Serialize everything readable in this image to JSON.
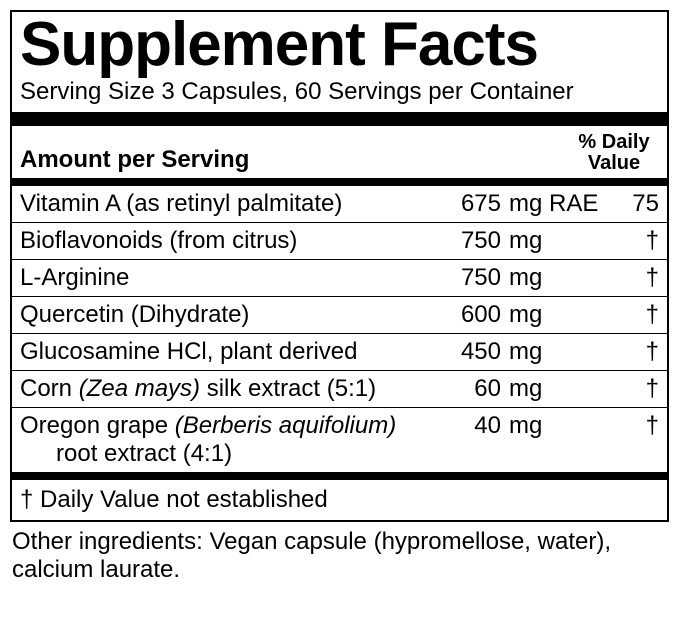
{
  "title": "Supplement Facts",
  "serving": "Serving Size 3 Capsules, 60 Servings per Container",
  "header": {
    "left": "Amount per Serving",
    "right_l1": "% Daily",
    "right_l2": "Value"
  },
  "rows": [
    {
      "name_html": "Vitamin A (as retinyl palmitate)",
      "amt": "675",
      "unit": "mg RAE",
      "dv": "75"
    },
    {
      "name_html": "Bioflavonoids (from citrus)",
      "amt": "750",
      "unit": "mg",
      "dv": "†"
    },
    {
      "name_html": "L-Arginine",
      "amt": "750",
      "unit": "mg",
      "dv": "†"
    },
    {
      "name_html": "Quercetin (Dihydrate)",
      "amt": "600",
      "unit": "mg",
      "dv": "†"
    },
    {
      "name_html": "Glucosamine HCl, plant derived",
      "amt": "450",
      "unit": "mg",
      "dv": "†"
    },
    {
      "name_html": "Corn <span class=\"italic\">(Zea mays)</span> silk extract (5:1)",
      "amt": "60",
      "unit": "mg",
      "dv": "†"
    },
    {
      "name_html": "Oregon grape <span class=\"italic\">(Berberis aquifolium)</span><span class=\"l2\">root extract (4:1)</span>",
      "amt": "40",
      "unit": "mg",
      "dv": "†"
    }
  ],
  "footnote": "†  Daily Value not established",
  "other": "Other ingredients: Vegan capsule (hypromellose, water), calcium laurate."
}
